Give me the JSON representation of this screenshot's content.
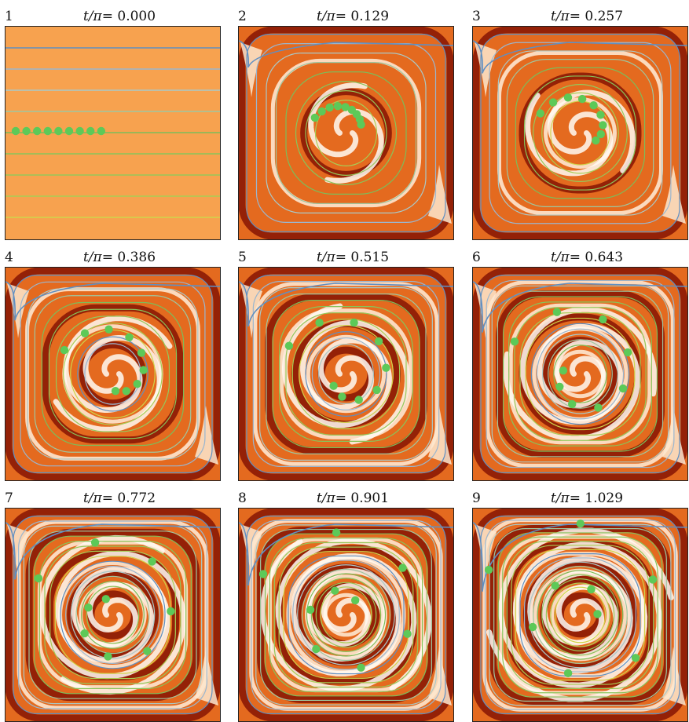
{
  "time_label": "t/π=",
  "panels": [
    {
      "index": "1",
      "time": "0.000",
      "theta": 0.0
    },
    {
      "index": "2",
      "time": "0.129",
      "theta": 0.129
    },
    {
      "index": "3",
      "time": "0.257",
      "theta": 0.257
    },
    {
      "index": "4",
      "time": "0.386",
      "theta": 0.386
    },
    {
      "index": "5",
      "time": "0.515",
      "theta": 0.515
    },
    {
      "index": "6",
      "time": "0.643",
      "theta": 0.643
    },
    {
      "index": "7",
      "time": "0.772",
      "theta": 0.772
    },
    {
      "index": "8",
      "time": "0.901",
      "theta": 0.901
    },
    {
      "index": "9",
      "time": "1.029",
      "theta": 1.029
    }
  ],
  "colors": {
    "background_uniform": "#f7a24f",
    "field_dark": "#8b1a04",
    "field_mid": "#e46a1f",
    "field_light": "#fde7cf",
    "field_white": "#fffaf3",
    "line_top": "#5f8fc2",
    "line_middle": "#a9c9c8",
    "line_green": "#7cbd5a",
    "line_bottom": "#cfd44b",
    "marker": "#5dc958",
    "frame": "#222222"
  },
  "streamline_colors": [
    "#5f8fc2",
    "#9ab6cf",
    "#a9c9c8",
    "#9ec7a0",
    "#7cbd5a",
    "#88c45a",
    "#95c85a",
    "#a8ce55",
    "#cfd44b"
  ],
  "marker_count": 9
}
